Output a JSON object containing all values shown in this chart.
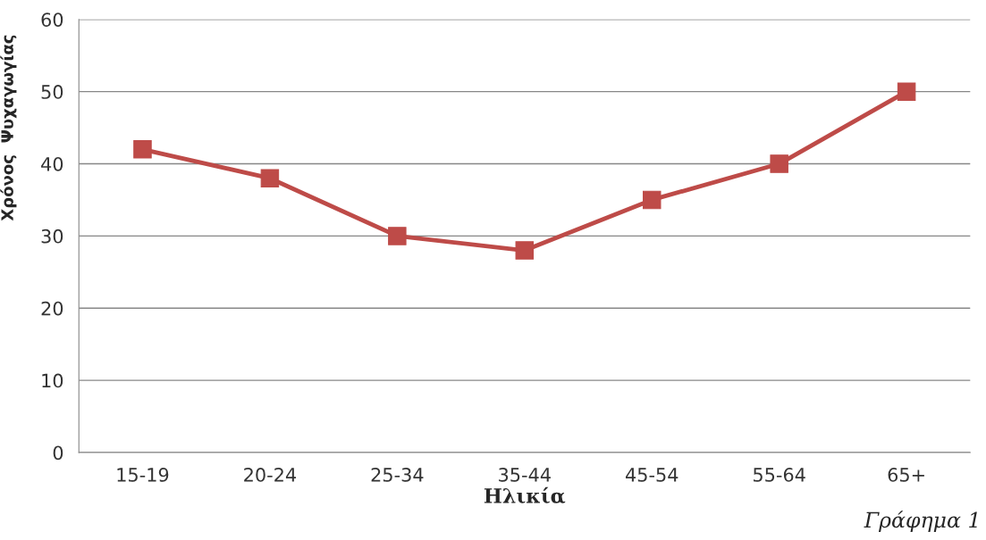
{
  "chart_data": {
    "type": "line",
    "xlabel": "Ηλικία",
    "ylabel": "Χρόνος  Ψυχαγωγίας",
    "categories": [
      "15-19",
      "20-24",
      "25-34",
      "35-44",
      "45-54",
      "55-64",
      "65+"
    ],
    "series": [
      {
        "color": "#be4b48",
        "values": [
          42,
          38,
          30,
          28,
          35,
          40,
          50
        ]
      }
    ],
    "ylim": [
      0,
      60
    ],
    "yticks": [
      0,
      10,
      20,
      30,
      40,
      50,
      60
    ],
    "grid": "y",
    "marker": "square",
    "line_style": "solid",
    "legend": false,
    "annotations": [
      "Γράφημα 1"
    ]
  }
}
